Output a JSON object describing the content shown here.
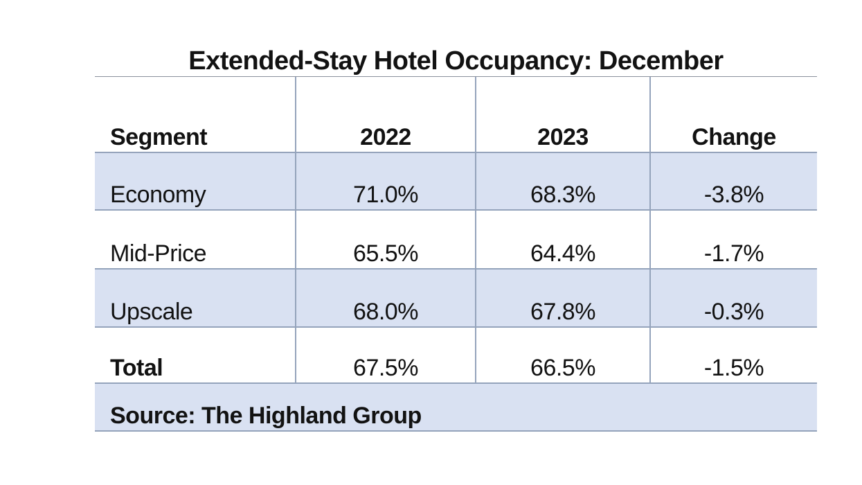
{
  "chart_data": {
    "type": "table",
    "title": "Extended-Stay Hotel Occupancy: December",
    "columns": [
      "Segment",
      "2022",
      "2023",
      "Change"
    ],
    "rows": [
      {
        "segment": "Economy",
        "y2022": "71.0%",
        "y2023": "68.3%",
        "change": "-3.8%"
      },
      {
        "segment": "Mid-Price",
        "y2022": "65.5%",
        "y2023": "64.4%",
        "change": "-1.7%"
      },
      {
        "segment": "Upscale",
        "y2022": "68.0%",
        "y2023": "67.8%",
        "change": "-0.3%"
      },
      {
        "segment": "Total",
        "y2022": "67.5%",
        "y2023": "66.5%",
        "change": "-1.5%"
      }
    ],
    "values_numeric": {
      "y2022": [
        71.0,
        65.5,
        68.0,
        67.5
      ],
      "y2023": [
        68.3,
        64.4,
        67.8,
        66.5
      ],
      "change_pct": [
        -3.8,
        -1.7,
        -0.3,
        -1.5
      ]
    },
    "shaded_rows": [
      "Economy",
      "Upscale"
    ],
    "source": "Source: The Highland Group"
  },
  "colors": {
    "band": "#d9e1f2",
    "grid-line": "#94a3bb",
    "title-rule": "#8a919c",
    "text": "#121212",
    "background": "#ffffff"
  }
}
